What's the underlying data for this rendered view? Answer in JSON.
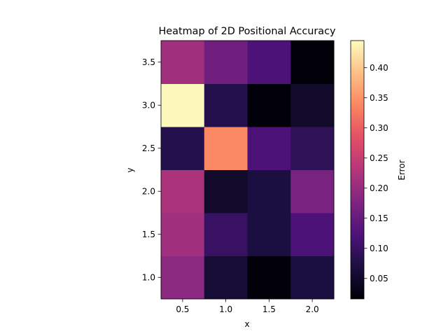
{
  "chart_data": {
    "type": "heatmap",
    "title": "Heatmap of 2D Positional Accuracy",
    "xlabel": "x",
    "ylabel": "y",
    "x": [
      0.5,
      1.0,
      1.5,
      2.0
    ],
    "y": [
      1.0,
      1.5,
      2.0,
      2.5,
      3.0,
      3.5
    ],
    "x_tick_labels": [
      "0.5",
      "1.0",
      "1.5",
      "2.0"
    ],
    "y_tick_labels": [
      "1.0",
      "1.5",
      "2.0",
      "2.5",
      "3.0",
      "3.5"
    ],
    "values": [
      [
        0.19,
        0.06,
        0.02,
        0.07
      ],
      [
        0.21,
        0.1,
        0.07,
        0.12
      ],
      [
        0.22,
        0.05,
        0.07,
        0.17
      ],
      [
        0.08,
        0.34,
        0.12,
        0.09
      ],
      [
        0.44,
        0.08,
        0.02,
        0.05
      ],
      [
        0.21,
        0.16,
        0.12,
        0.02
      ]
    ],
    "colormap": "magma",
    "colorbar": {
      "label": "Error",
      "range": [
        0.016,
        0.445
      ],
      "ticks": [
        0.05,
        0.1,
        0.15,
        0.2,
        0.25,
        0.3,
        0.35,
        0.4
      ],
      "tick_labels": [
        "0.05",
        "0.10",
        "0.15",
        "0.20",
        "0.25",
        "0.30",
        "0.35",
        "0.40"
      ]
    },
    "grid": false
  }
}
